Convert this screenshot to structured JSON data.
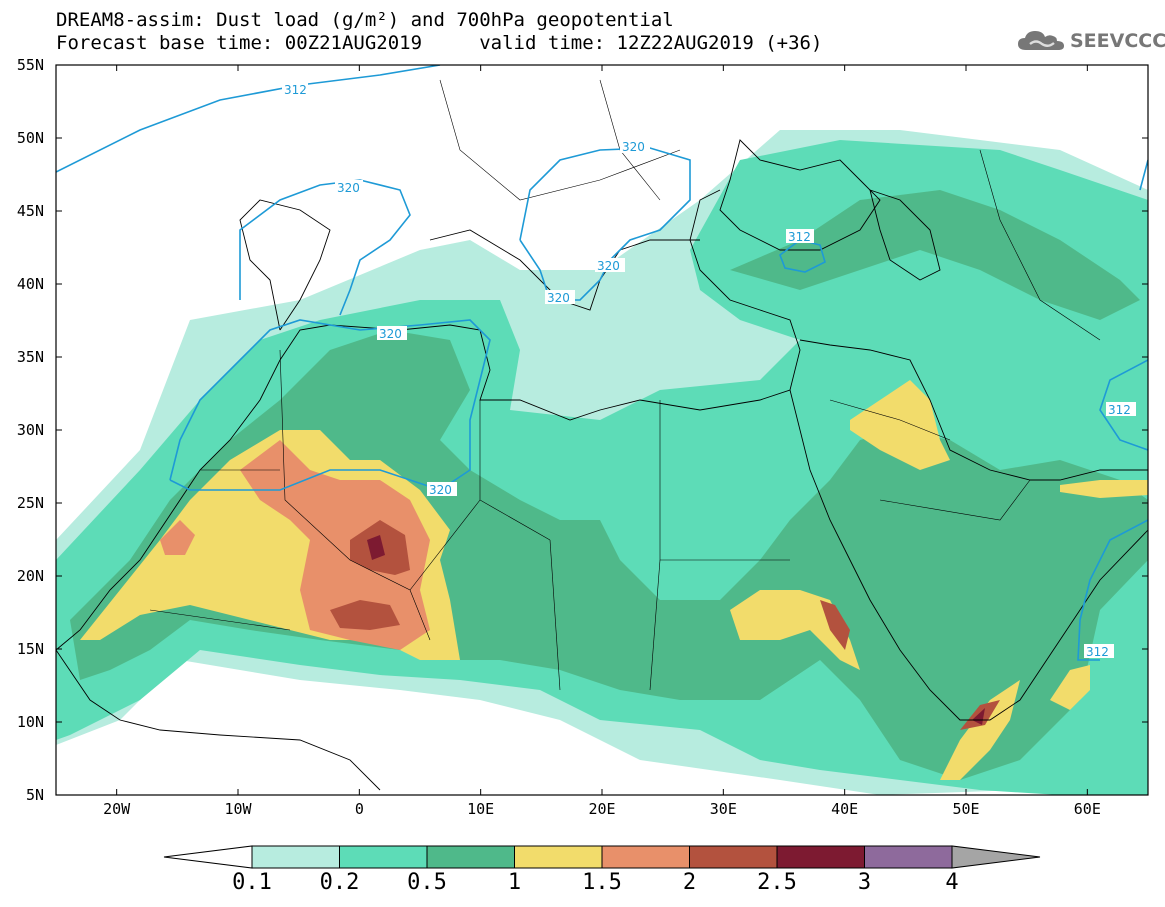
{
  "title": {
    "line1": "DREAM8-assim: Dust load (g/m²) and 700hPa geopotential",
    "line2": "Forecast base time: 00Z21AUG2019     valid time: 12Z22AUG2019 (+36)"
  },
  "logo": {
    "icon": "cloud-icon",
    "text": "SEEVCCC"
  },
  "map": {
    "lon_range": [
      -25,
      65
    ],
    "lat_range": [
      5,
      55
    ],
    "lat_ticks": [
      "55N",
      "50N",
      "45N",
      "40N",
      "35N",
      "30N",
      "25N",
      "20N",
      "15N",
      "10N",
      "5N"
    ],
    "lon_ticks": [
      "20W",
      "10W",
      "0",
      "10E",
      "20E",
      "30E",
      "40E",
      "50E",
      "60E"
    ],
    "contour_labels": [
      "312",
      "320",
      "320",
      "320",
      "320",
      "320",
      "312",
      "312",
      "312",
      "320"
    ]
  },
  "colorbar": {
    "labels": [
      "0.1",
      "0.2",
      "0.5",
      "1",
      "1.5",
      "2",
      "2.5",
      "3",
      "4"
    ],
    "colors": [
      "#ffffff",
      "#b7ecdf",
      "#5ddcb7",
      "#4fb98a",
      "#f2dc6b",
      "#e8906a",
      "#b3523e",
      "#7d1a31",
      "#8e6a9c",
      "#a5a5a5"
    ]
  }
}
